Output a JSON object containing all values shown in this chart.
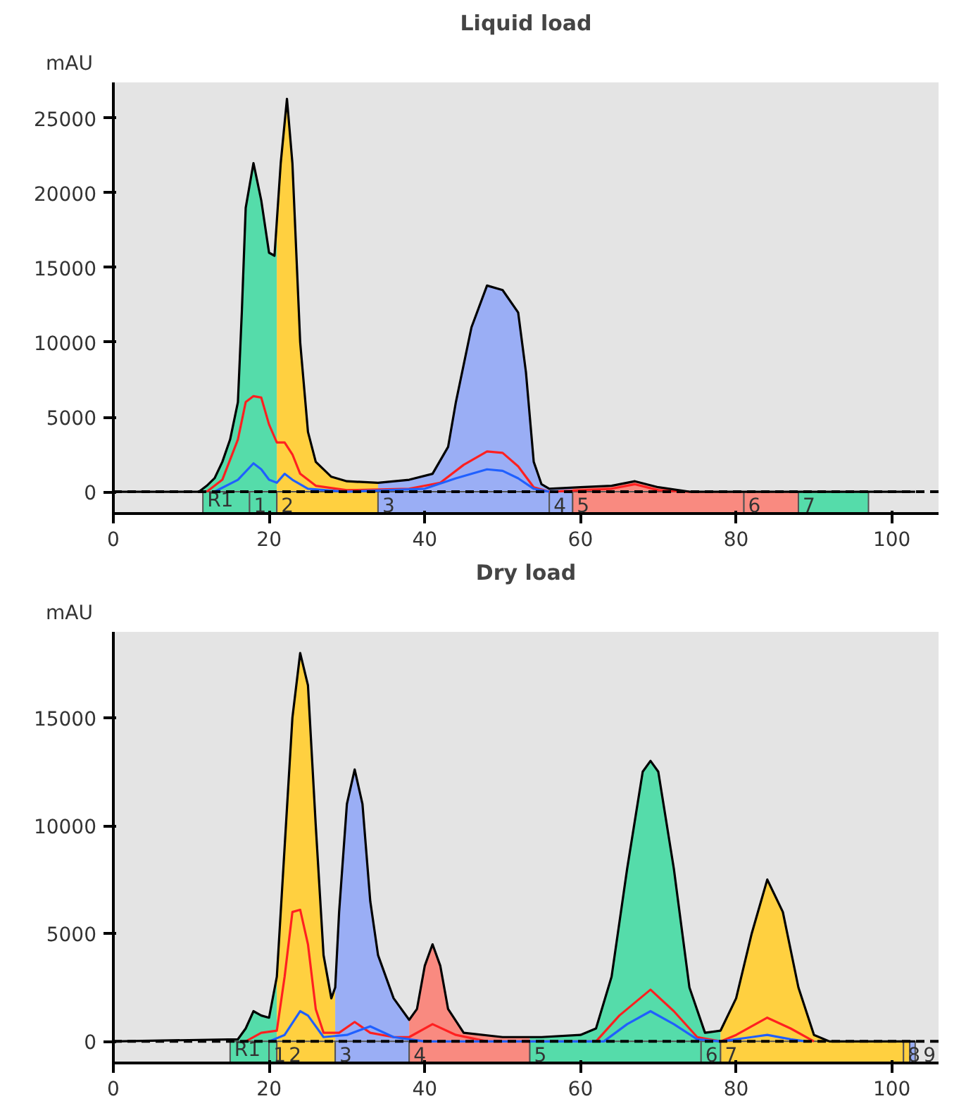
{
  "chart_data": [
    {
      "type": "line",
      "title": "Liquid load",
      "ylabel": "mAU",
      "xlim": [
        0,
        106
      ],
      "ylim": [
        -1460,
        27400
      ],
      "xticks": [
        0,
        20,
        40,
        60,
        80,
        100
      ],
      "yticks": [
        0,
        5000,
        10000,
        15000,
        20000,
        25000
      ],
      "line_style": "solid",
      "series": [
        {
          "type": "area",
          "color": "#55dcaa",
          "x": [
            11.5,
            12,
            13,
            14,
            15,
            16,
            16.5,
            17,
            18,
            19,
            20,
            20.7,
            21
          ],
          "values": [
            200,
            400,
            900,
            2000,
            3500,
            6000,
            12000,
            19000,
            22000,
            19500,
            16000,
            15800,
            18500
          ]
        },
        {
          "type": "area",
          "color": "#ffd040",
          "x": [
            21,
            21.5,
            22.3,
            23,
            24,
            25,
            26,
            28,
            30,
            34
          ],
          "values": [
            18500,
            22000,
            26300,
            22000,
            10000,
            4000,
            2000,
            1000,
            700,
            600
          ]
        },
        {
          "type": "area",
          "color": "#9aaef5",
          "x": [
            34,
            38,
            41,
            43,
            44,
            46,
            48,
            50,
            52,
            53,
            54,
            55,
            56,
            59
          ],
          "values": [
            600,
            800,
            1200,
            3000,
            6000,
            11000,
            13800,
            13500,
            12000,
            8000,
            2000,
            500,
            200,
            300
          ]
        },
        {
          "type": "area",
          "color": "#f98a80",
          "x": [
            59,
            60,
            64,
            67,
            70,
            74,
            81
          ],
          "values": [
            300,
            300,
            400,
            700,
            300,
            0,
            0
          ]
        },
        {
          "color": "#000000",
          "x": [
            0,
            11,
            12,
            13,
            14,
            15,
            16,
            16.5,
            17,
            18,
            19,
            20,
            20.7,
            21.5,
            22.3,
            23,
            24,
            25,
            26,
            28,
            30,
            34,
            38,
            41,
            43,
            44,
            46,
            48,
            50,
            52,
            53,
            54,
            55,
            56,
            60,
            64,
            67,
            70,
            74,
            103
          ],
          "values": [
            0,
            0,
            400,
            900,
            2000,
            3500,
            6000,
            12000,
            19000,
            22000,
            19500,
            16000,
            15800,
            22000,
            26300,
            22000,
            10000,
            4000,
            2000,
            1000,
            700,
            600,
            800,
            1200,
            3000,
            6000,
            11000,
            13800,
            13500,
            12000,
            8000,
            2000,
            500,
            200,
            300,
            400,
            700,
            300,
            0,
            0
          ]
        },
        {
          "color": "#ff2020",
          "x": [
            12,
            14,
            16,
            17,
            18,
            19,
            20,
            21,
            22,
            23,
            24,
            26,
            30,
            38,
            42,
            45,
            48,
            50,
            52,
            54,
            56,
            64,
            67,
            70,
            74
          ],
          "values": [
            0,
            800,
            3500,
            6000,
            6400,
            6300,
            4500,
            3300,
            3300,
            2500,
            1200,
            400,
            100,
            200,
            600,
            1800,
            2700,
            2600,
            1700,
            300,
            0,
            200,
            500,
            100,
            0
          ]
        },
        {
          "color": "#2060ff",
          "x": [
            13,
            16,
            18,
            19,
            20,
            21,
            22,
            23,
            25,
            30,
            40,
            44,
            48,
            50,
            52,
            54,
            56
          ],
          "values": [
            0,
            800,
            1900,
            1500,
            800,
            600,
            1200,
            800,
            200,
            0,
            200,
            900,
            1500,
            1400,
            900,
            200,
            0
          ]
        }
      ],
      "ref_lines": [
        {
          "axis": "y",
          "value": 0,
          "color": "#000000",
          "line_style": "dashed"
        }
      ],
      "bands": [
        {
          "axis": "x",
          "from": 11.5,
          "to": 17.5,
          "label": "R1",
          "color": "#55dcaa"
        },
        {
          "axis": "x",
          "from": 17.5,
          "to": 21,
          "label": "1",
          "color": "#55dcaa"
        },
        {
          "axis": "x",
          "from": 21,
          "to": 34,
          "label": "2",
          "color": "#ffd040"
        },
        {
          "axis": "x",
          "from": 34,
          "to": 56,
          "label": "3",
          "color": "#9aaef5"
        },
        {
          "axis": "x",
          "from": 56,
          "to": 59,
          "label": "4",
          "color": "#9aaef5"
        },
        {
          "axis": "x",
          "from": 59,
          "to": 81,
          "label": "5",
          "color": "#f98a80"
        },
        {
          "axis": "x",
          "from": 81,
          "to": 88,
          "label": "6",
          "color": "#f98a80"
        },
        {
          "axis": "x",
          "from": 88,
          "to": 97,
          "label": "7",
          "color": "#55dcaa"
        }
      ]
    },
    {
      "type": "line",
      "title": "Dry load",
      "ylabel": "mAU",
      "xlim": [
        0,
        106
      ],
      "ylim": [
        -1000,
        18980
      ],
      "xticks": [
        0,
        20,
        40,
        60,
        80,
        100
      ],
      "yticks": [
        0,
        5000,
        10000,
        15000
      ],
      "line_style": "solid",
      "series": [
        {
          "type": "area",
          "color": "#55dcaa",
          "x": [
            15,
            16,
            17,
            18,
            19,
            20,
            21
          ],
          "values": [
            80,
            100,
            600,
            1400,
            1200,
            1100,
            3000
          ]
        },
        {
          "type": "area",
          "color": "#ffd040",
          "x": [
            21,
            22,
            23,
            24,
            25,
            26,
            27,
            28,
            28.5
          ],
          "values": [
            3000,
            9000,
            15000,
            18000,
            16500,
            10000,
            4000,
            2000,
            2500
          ]
        },
        {
          "type": "area",
          "color": "#9aaef5",
          "x": [
            28.5,
            29,
            30,
            31,
            32,
            33,
            34,
            36,
            38
          ],
          "values": [
            2500,
            6000,
            11000,
            12600,
            11000,
            6500,
            4000,
            2000,
            1000
          ]
        },
        {
          "type": "area",
          "color": "#f98a80",
          "x": [
            38,
            39,
            40,
            41,
            42,
            43,
            45,
            50,
            53.5
          ],
          "values": [
            1000,
            1500,
            3500,
            4500,
            3500,
            1500,
            400,
            200,
            200
          ]
        },
        {
          "type": "area",
          "color": "#55dcaa",
          "x": [
            53.5,
            55,
            60,
            62,
            64,
            66,
            68,
            69,
            70,
            72,
            74,
            76,
            78
          ],
          "values": [
            200,
            200,
            300,
            600,
            3000,
            8000,
            12500,
            13000,
            12500,
            8000,
            2500,
            400,
            500
          ]
        },
        {
          "type": "area",
          "color": "#ffd040",
          "x": [
            78,
            80,
            82,
            84,
            86,
            88,
            90,
            92
          ],
          "values": [
            500,
            2000,
            5000,
            7500,
            6000,
            2500,
            300,
            0
          ]
        },
        {
          "color": "#000000",
          "x": [
            0,
            16,
            17,
            18,
            19,
            20,
            21,
            22,
            23,
            24,
            25,
            26,
            27,
            28,
            28.5,
            29,
            30,
            31,
            32,
            33,
            34,
            36,
            38,
            39,
            40,
            41,
            42,
            43,
            45,
            50,
            55,
            60,
            62,
            64,
            66,
            68,
            69,
            70,
            72,
            74,
            76,
            78,
            80,
            82,
            84,
            86,
            88,
            90,
            92,
            103
          ],
          "values": [
            0,
            100,
            600,
            1400,
            1200,
            1100,
            3000,
            9000,
            15000,
            18000,
            16500,
            10000,
            4000,
            2000,
            2500,
            6000,
            11000,
            12600,
            11000,
            6500,
            4000,
            2000,
            1000,
            1500,
            3500,
            4500,
            3500,
            1500,
            400,
            200,
            200,
            300,
            600,
            3000,
            8000,
            12500,
            13000,
            12500,
            8000,
            2500,
            400,
            500,
            2000,
            5000,
            7500,
            6000,
            2500,
            300,
            0,
            0
          ]
        },
        {
          "color": "#ff2020",
          "x": [
            17,
            19,
            21,
            22,
            23,
            24,
            25,
            26,
            27,
            29,
            31,
            33,
            36,
            38,
            41,
            44,
            48,
            62,
            65,
            69,
            72,
            75,
            78,
            80,
            84,
            87,
            90
          ],
          "values": [
            0,
            400,
            500,
            3000,
            6000,
            6100,
            4500,
            1500,
            400,
            400,
            900,
            400,
            200,
            200,
            800,
            300,
            0,
            0,
            1200,
            2400,
            1400,
            200,
            0,
            300,
            1100,
            600,
            0
          ]
        },
        {
          "color": "#2060ff",
          "x": [
            20,
            22,
            24,
            25,
            27,
            30,
            33,
            36,
            40,
            63,
            66,
            69,
            72,
            75,
            78,
            82,
            84,
            87,
            89
          ],
          "values": [
            0,
            300,
            1400,
            1200,
            200,
            300,
            700,
            200,
            0,
            0,
            800,
            1400,
            800,
            100,
            0,
            200,
            300,
            100,
            0
          ]
        }
      ],
      "ref_lines": [
        {
          "axis": "y",
          "value": 0,
          "color": "#000000",
          "line_style": "dashed"
        }
      ],
      "bands": [
        {
          "axis": "x",
          "from": 15,
          "to": 20,
          "label": "R1",
          "color": "#55dcaa"
        },
        {
          "axis": "x",
          "from": 20,
          "to": 21,
          "label": "1",
          "color": "#55dcaa"
        },
        {
          "axis": "x",
          "from": 21,
          "to": 28.5,
          "label": "2",
          "color": "#ffd040"
        },
        {
          "axis": "x",
          "from": 28.5,
          "to": 38,
          "label": "3",
          "color": "#9aaef5"
        },
        {
          "axis": "x",
          "from": 38,
          "to": 53.5,
          "label": "4",
          "color": "#f98a80"
        },
        {
          "axis": "x",
          "from": 53.5,
          "to": 75.5,
          "label": "5",
          "color": "#55dcaa"
        },
        {
          "axis": "x",
          "from": 75.5,
          "to": 78,
          "label": "6",
          "color": "#55dcaa"
        },
        {
          "axis": "x",
          "from": 78,
          "to": 101.5,
          "label": "7",
          "color": "#ffd040"
        },
        {
          "axis": "x",
          "from": 101.5,
          "to": 102.3,
          "label": "8",
          "color": "#ffd040"
        },
        {
          "axis": "x",
          "from": 102.3,
          "to": 103,
          "label": "9",
          "color": "#9aaef5"
        }
      ]
    }
  ]
}
